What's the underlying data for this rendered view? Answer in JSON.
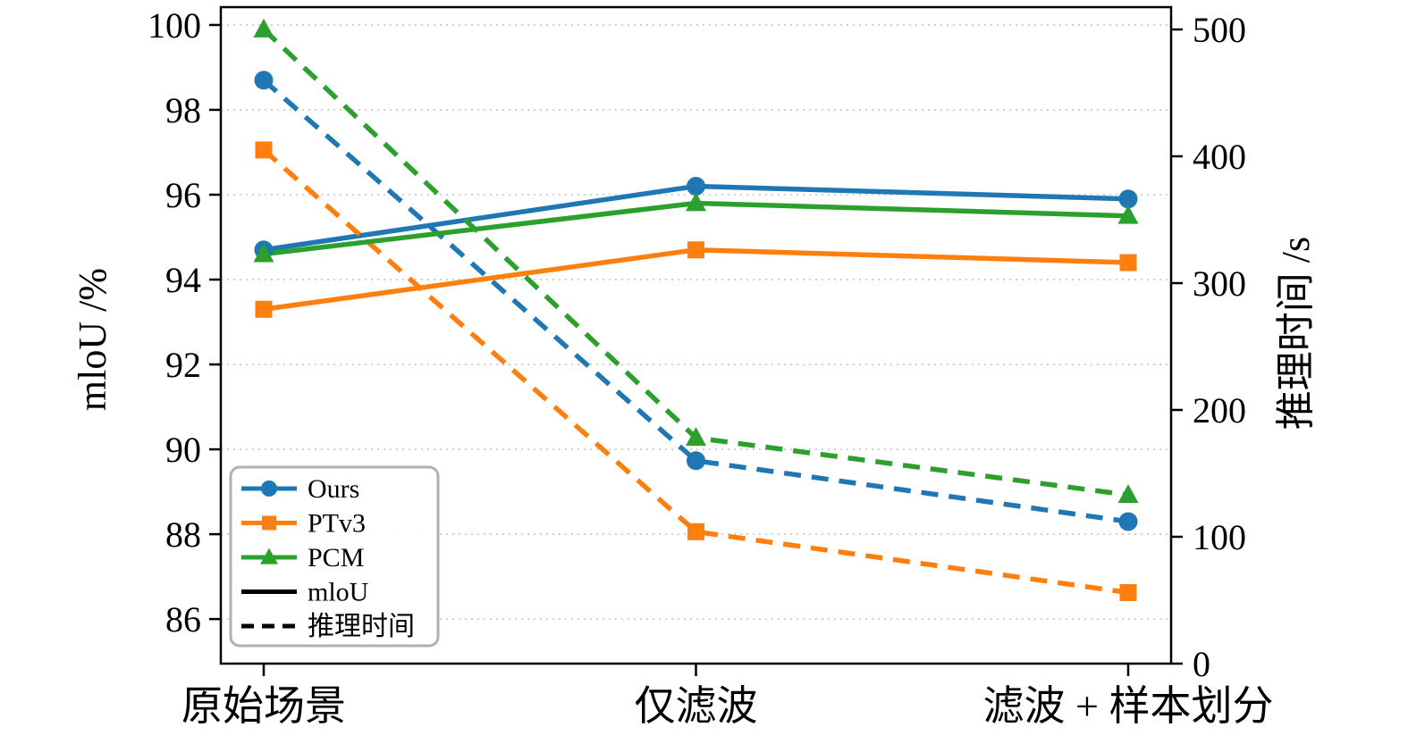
{
  "chart_data": {
    "type": "line",
    "categories": [
      "原始场景",
      "仅滤波",
      "滤波 + 样本划分"
    ],
    "left_axis": {
      "label": "mloU /%",
      "ticks": [
        100,
        98,
        96,
        94,
        92,
        90,
        88,
        86
      ],
      "ylim": [
        84.95,
        100.42
      ],
      "unit": "%"
    },
    "right_axis": {
      "label": "推理时间 /s",
      "ticks": [
        500,
        400,
        300,
        200,
        100,
        0
      ],
      "ylim": [
        0,
        517.6
      ],
      "unit": "s"
    },
    "grid": "horizontal-dotted",
    "line_styles": {
      "miou": "solid",
      "time": "dashed"
    },
    "series": [
      {
        "name": "Ours",
        "color": "#1f77b4",
        "marker": "circle",
        "miou": [
          94.7,
          96.2,
          95.9
        ],
        "time": [
          460,
          160,
          112
        ]
      },
      {
        "name": "PTv3",
        "color": "#ff7f0e",
        "marker": "square",
        "miou": [
          93.3,
          94.7,
          94.4
        ],
        "time": [
          405,
          104,
          56
        ]
      },
      {
        "name": "PCM",
        "color": "#2ca02c",
        "marker": "triangle",
        "miou": [
          94.6,
          95.8,
          95.5
        ],
        "time": [
          500,
          178,
          133
        ]
      }
    ],
    "legend": {
      "position": "lower-left",
      "style_entries": [
        {
          "label": "mloU",
          "style": "solid"
        },
        {
          "label": "推理时间",
          "style": "dashed"
        }
      ]
    }
  }
}
